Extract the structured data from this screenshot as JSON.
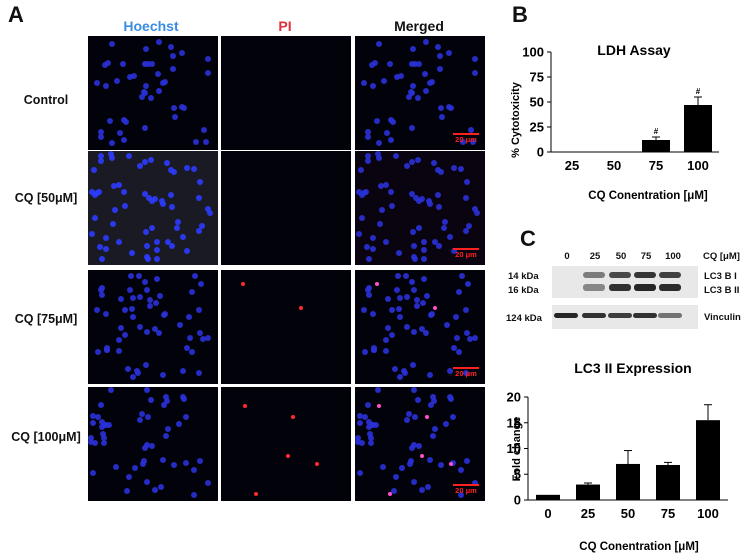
{
  "panel_a": {
    "letter": "A",
    "columns": [
      "Hoechst",
      "PI",
      "Merged"
    ],
    "column_colors": [
      "#3a8de0",
      "#e0303a",
      "#111111"
    ],
    "rows": [
      {
        "label": "Control"
      },
      {
        "label": "CQ [50μM]"
      },
      {
        "label": "CQ [75μM]"
      },
      {
        "label": "CQ [100μM]"
      }
    ],
    "scale_bar": "20 μm"
  },
  "panel_b": {
    "letter": "B",
    "title": "LDH Assay",
    "ylabel": "% Cytotoxicity",
    "xlabel": "CQ Conentration [μM]",
    "significance_mark": "#"
  },
  "panel_c": {
    "letter": "C",
    "lanes": [
      "0",
      "25",
      "50",
      "75",
      "100"
    ],
    "unit_label": "CQ [μM]",
    "mw_markers": [
      "14 kDa",
      "16 kDa",
      "124 kDa"
    ],
    "band_labels": [
      "LC3 B I",
      "LC3 B II",
      "Vinculin"
    ],
    "title": "LC3 II Expression",
    "ylabel": "Fold change",
    "xlabel": "CQ Conentration [μM]"
  },
  "chart_data": [
    {
      "type": "bar",
      "title": "LDH Assay",
      "xlabel": "CQ Conentration [μM]",
      "ylabel": "% Cytotoxicity",
      "categories": [
        "25",
        "50",
        "75",
        "100"
      ],
      "values": [
        0,
        0,
        12,
        47
      ],
      "errors": [
        0,
        0,
        3,
        8
      ],
      "annotations": [
        "",
        "",
        "#",
        "#"
      ],
      "ylim": [
        0,
        100
      ],
      "yticks": [
        0,
        25,
        50,
        75,
        100
      ],
      "grid": false
    },
    {
      "type": "bar",
      "title": "LC3 II Expression",
      "xlabel": "CQ Conentration [μM]",
      "ylabel": "Fold change",
      "categories": [
        "0",
        "25",
        "50",
        "75",
        "100"
      ],
      "values": [
        1,
        3,
        7,
        6.8,
        15.5
      ],
      "errors": [
        0,
        0.3,
        2.6,
        0.5,
        3
      ],
      "ylim": [
        0,
        20
      ],
      "yticks": [
        0,
        5,
        10,
        15,
        20
      ],
      "grid": false
    }
  ]
}
